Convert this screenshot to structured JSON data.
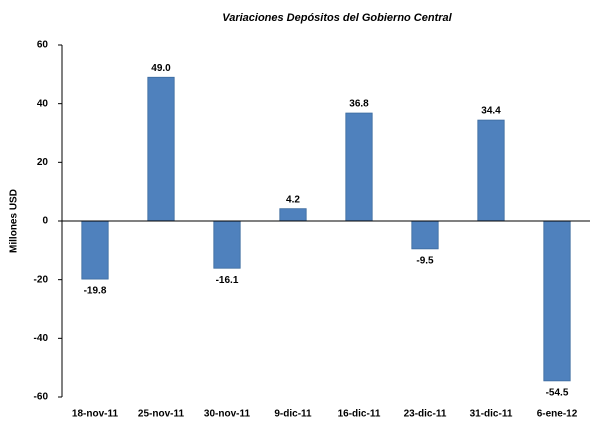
{
  "chart_data": {
    "type": "bar",
    "title": "Variaciones Depósitos del Gobierno Central",
    "ylabel": "Millones USD",
    "categories": [
      "18-nov-11",
      "25-nov-11",
      "30-nov-11",
      "9-dic-11",
      "16-dic-11",
      "23-dic-11",
      "31-dic-11",
      "6-ene-12"
    ],
    "values": [
      -19.8,
      49,
      -16.1,
      4.2,
      36.8,
      -9.5,
      34.4,
      -54.5
    ],
    "value_labels": [
      "-19.8",
      "49.0",
      "-16.1",
      "4.2",
      "36.8",
      "-9.5",
      "34.4",
      "-54.5"
    ],
    "color": "#4f81bd",
    "ylim": [
      -60,
      60
    ],
    "yticks": [
      -60,
      -40,
      -20,
      0,
      20,
      40,
      60
    ],
    "grid": false
  }
}
